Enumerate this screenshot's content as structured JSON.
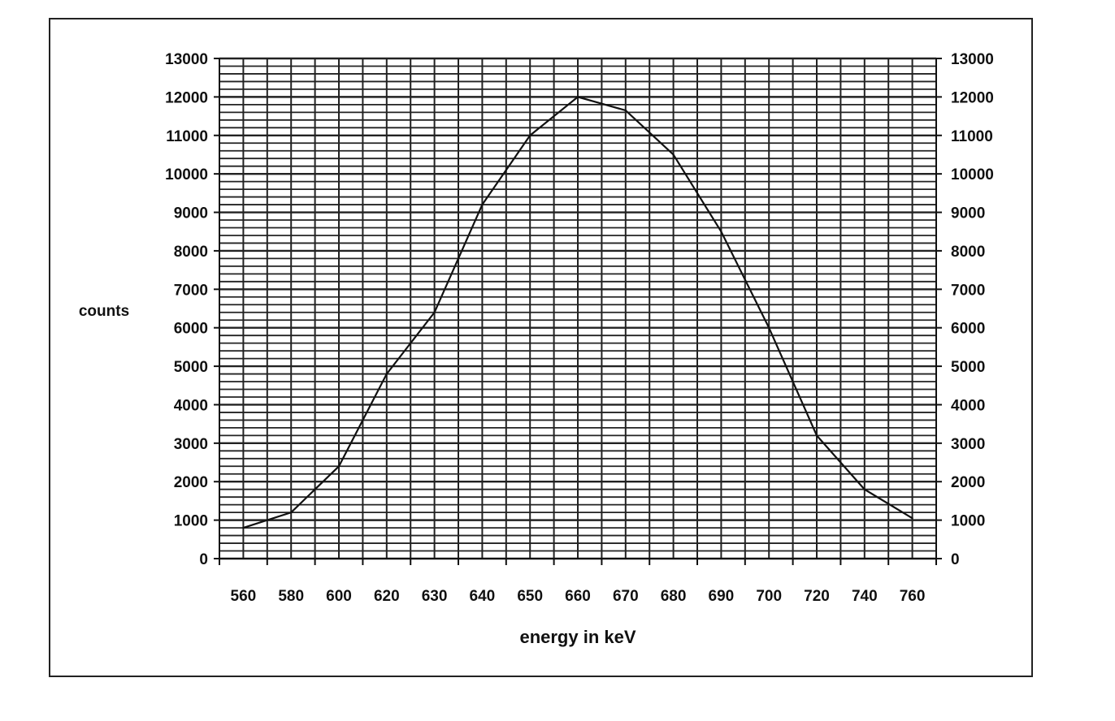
{
  "chart_data": {
    "type": "line",
    "title": "",
    "xlabel": "energy in keV",
    "ylabel": "counts",
    "categories": [
      "560",
      "580",
      "600",
      "620",
      "630",
      "640",
      "650",
      "660",
      "670",
      "680",
      "690",
      "700",
      "720",
      "740",
      "760"
    ],
    "series": [
      {
        "values": [
          800,
          1200,
          2400,
          4800,
          6400,
          9200,
          11000,
          12000,
          11650,
          10500,
          8500,
          6000,
          3200,
          1800,
          1050
        ]
      }
    ],
    "ylim": [
      0,
      13000
    ],
    "yticks": [
      0,
      1000,
      2000,
      3000,
      4000,
      5000,
      6000,
      7000,
      8000,
      9000,
      10000,
      11000,
      12000,
      13000
    ],
    "y_minor_step": 200,
    "secondary_y_axis": true,
    "grid": true,
    "legend": "none",
    "colors": {
      "line": "#111111",
      "grid": "#222222"
    }
  }
}
